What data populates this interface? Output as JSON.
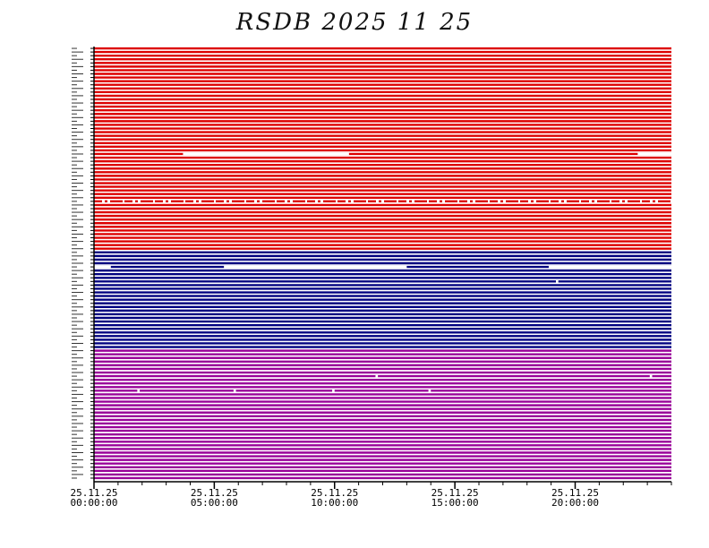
{
  "chart_data": {
    "type": "timeline",
    "title": "RSDB 2025 11 25",
    "x_tick_labels": [
      {
        "date": "25.11.25",
        "time": "00:00:00",
        "hour": 0
      },
      {
        "date": "25.11.25",
        "time": "05:00:00",
        "hour": 5
      },
      {
        "date": "25.11.25",
        "time": "10:00:00",
        "hour": 10
      },
      {
        "date": "25.11.25",
        "time": "15:00:00",
        "hour": 15
      },
      {
        "date": "25.11.25",
        "time": "20:00:00",
        "hour": 20
      }
    ],
    "xlim_hours": [
      0,
      24
    ],
    "minor_tick_step_hours": 1,
    "groups": [
      {
        "color": "#dd0000",
        "row_count": 56
      },
      {
        "color": "#000080",
        "row_count": 27
      },
      {
        "color": "#990099",
        "row_count": 36
      }
    ],
    "gaps": [
      {
        "group": 0,
        "row": 29,
        "start_hour": 3.7,
        "end_hour": 10.6
      },
      {
        "group": 0,
        "row": 29,
        "start_hour": 22.6,
        "end_hour": 24
      },
      {
        "group": 1,
        "row": 4,
        "start_hour": 0,
        "end_hour": 0.7
      },
      {
        "group": 1,
        "row": 4,
        "start_hour": 5.4,
        "end_hour": 13.0
      },
      {
        "group": 1,
        "row": 4,
        "start_hour": 18.9,
        "end_hour": 24
      },
      {
        "group": 1,
        "row": 8,
        "start_hour": 19.2,
        "end_hour": 19.3
      },
      {
        "group": 2,
        "row": 7,
        "start_hour": 11.7,
        "end_hour": 11.8
      },
      {
        "group": 2,
        "row": 7,
        "start_hour": 23.1,
        "end_hour": 23.2
      },
      {
        "group": 2,
        "row": 11,
        "start_hour": 1.8,
        "end_hour": 1.9
      },
      {
        "group": 2,
        "row": 11,
        "start_hour": 5.8,
        "end_hour": 5.9
      },
      {
        "group": 2,
        "row": 11,
        "start_hour": 9.9,
        "end_hour": 10.0
      },
      {
        "group": 2,
        "row": 11,
        "start_hour": 13.9,
        "end_hour": 14.0
      }
    ],
    "dashed_row": {
      "group": 0,
      "row": 42
    }
  }
}
